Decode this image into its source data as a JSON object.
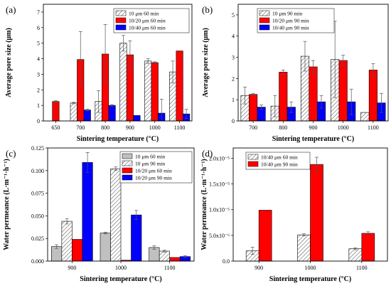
{
  "chart_data": [
    {
      "panel": "(a)",
      "type": "bar",
      "categories": [
        "650",
        "700",
        "800",
        "900",
        "1000",
        "1100"
      ],
      "xlabel": "Sintering temperature (°C)",
      "ylabel": "Average pore size (μm)",
      "ylim": [
        0,
        7.5
      ],
      "yticks": [
        "0",
        "1",
        "2",
        "3",
        "4",
        "5",
        "6",
        "7"
      ],
      "legend_position": "top-right",
      "series": [
        {
          "name": "10 μm 60 min",
          "color": "#ffffff",
          "pattern": "hatch",
          "values": [
            null,
            1.15,
            1.25,
            5.0,
            3.85,
            3.15
          ],
          "errors": [
            null,
            0.05,
            0.7,
            0.5,
            0.15,
            0.7
          ]
        },
        {
          "name": "10/20 μm 60 min",
          "color": "#ff0000",
          "pattern": "solid",
          "values": [
            1.25,
            3.95,
            4.3,
            4.25,
            3.75,
            4.5
          ],
          "errors": [
            0.05,
            1.8,
            1.9,
            0.9,
            0.05,
            0.0
          ]
        },
        {
          "name": "10/40 μm 60 min",
          "color": "#0000ff",
          "pattern": "solid",
          "values": [
            null,
            0.7,
            1.0,
            0.35,
            0.5,
            0.45
          ],
          "errors": [
            null,
            0.05,
            0.05,
            0.0,
            0.9,
            0.3
          ]
        }
      ]
    },
    {
      "panel": "(b)",
      "type": "bar",
      "categories": [
        "700",
        "800",
        "900",
        "1000",
        "1100"
      ],
      "xlabel": "Sintering temperature (°C)",
      "ylabel": "Average pore size (μm)",
      "ylim": [
        0,
        5.5
      ],
      "yticks": [
        "0",
        "1",
        "2",
        "3",
        "4",
        "5"
      ],
      "legend_position": "top-left",
      "series": [
        {
          "name": "10 μm 90 min",
          "color": "#ffffff",
          "pattern": "hatch",
          "values": [
            1.2,
            0.7,
            3.05,
            2.9,
            0.4
          ],
          "errors": [
            0.4,
            0.5,
            0.7,
            1.8,
            0.0
          ]
        },
        {
          "name": "10/20 μm 90 min",
          "color": "#ff0000",
          "pattern": "solid",
          "values": [
            1.25,
            2.3,
            2.55,
            2.85,
            2.4
          ],
          "errors": [
            0.05,
            0.1,
            0.3,
            0.25,
            0.3
          ]
        },
        {
          "name": "10/40 μm 90 min",
          "color": "#0000ff",
          "pattern": "solid",
          "values": [
            0.65,
            0.65,
            0.9,
            0.9,
            0.85
          ],
          "errors": [
            0.1,
            0.25,
            0.3,
            0.6,
            0.45
          ]
        }
      ]
    },
    {
      "panel": "(c)",
      "type": "bar",
      "categories": [
        "900",
        "1000",
        "1100"
      ],
      "xlabel": "Sintering temperature (°C)",
      "ylabel": "Water permeance (L·m⁻¹·h⁻¹)",
      "ylim": [
        0,
        0.125
      ],
      "yticks": [
        "0.000",
        "0.025",
        "0.050",
        "0.075",
        "0.100",
        "0.125"
      ],
      "legend_position": "top-right",
      "series": [
        {
          "name": "10 μm 60 min",
          "color": "#c0c0c0",
          "pattern": "solid",
          "values": [
            0.016,
            0.031,
            0.015
          ],
          "errors": [
            0.002,
            0.001,
            0.002
          ]
        },
        {
          "name": "10 μm 90 min",
          "color": "#ffffff",
          "pattern": "hatch",
          "values": [
            0.044,
            0.102,
            0.011
          ],
          "errors": [
            0.003,
            0.002,
            0.001
          ]
        },
        {
          "name": "10/20 μm 60 min",
          "color": "#ff0000",
          "pattern": "solid",
          "values": [
            0.024,
            0.001,
            0.004
          ],
          "errors": [
            0.0,
            0.0,
            0.0
          ]
        },
        {
          "name": "10/20 μm 90 min",
          "color": "#0000ff",
          "pattern": "solid",
          "values": [
            0.109,
            0.051,
            0.005
          ],
          "errors": [
            0.011,
            0.005,
            0.001
          ]
        }
      ]
    },
    {
      "panel": "(d)",
      "type": "bar",
      "categories": [
        "900",
        "1000",
        "1100"
      ],
      "xlabel": "Sintering temperature (°C)",
      "ylabel": "Water permeance (L·m⁻¹·h⁻¹)",
      "ylim": [
        0,
        2.2e-05
      ],
      "yticks": [
        "0.0",
        "5.0x10⁻⁶",
        "1.0x10⁻⁵",
        "1.5x10⁻⁵",
        "2.0x10⁻⁵"
      ],
      "legend_position": "top-left",
      "series": [
        {
          "name": "10/40 μm 60 min",
          "color": "#ffffff",
          "pattern": "hatch",
          "values": [
            2e-06,
            5.1e-06,
            2.4e-06
          ],
          "errors": [
            7e-07,
            2e-07,
            2e-07
          ]
        },
        {
          "name": "10/40 μm 90 min",
          "color": "#ff0000",
          "pattern": "solid",
          "values": [
            9.9e-06,
            1.88e-05,
            5.4e-06
          ],
          "errors": [
            0.0,
            1.4e-06,
            3e-07
          ]
        }
      ]
    }
  ]
}
